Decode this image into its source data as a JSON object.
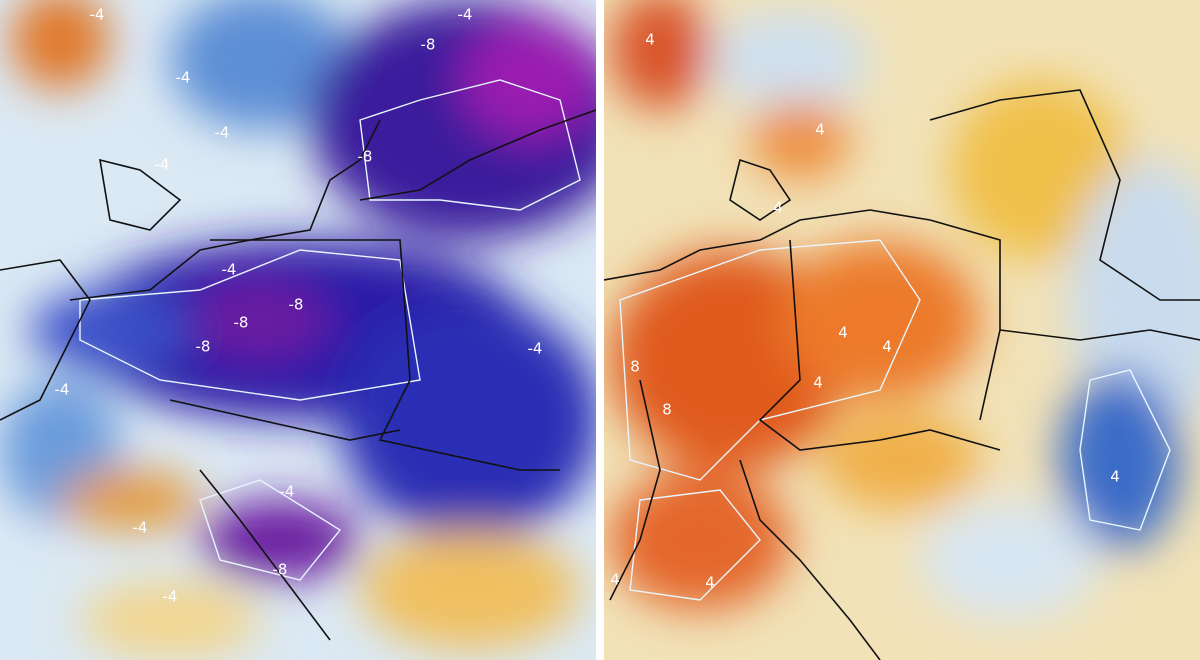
{
  "left_panel": {
    "contour_labels": [
      "-4",
      "-4",
      "-8",
      "-4",
      "-4",
      "-8",
      "-4",
      "-4",
      "-8",
      "-8",
      "-8",
      "-4",
      "-4",
      "-4",
      "-4",
      "-8",
      "-4"
    ]
  },
  "right_panel": {
    "contour_labels": [
      "4",
      "4",
      "4",
      "4",
      "4",
      "4",
      "8",
      "8",
      "4",
      "4",
      "4"
    ]
  }
}
